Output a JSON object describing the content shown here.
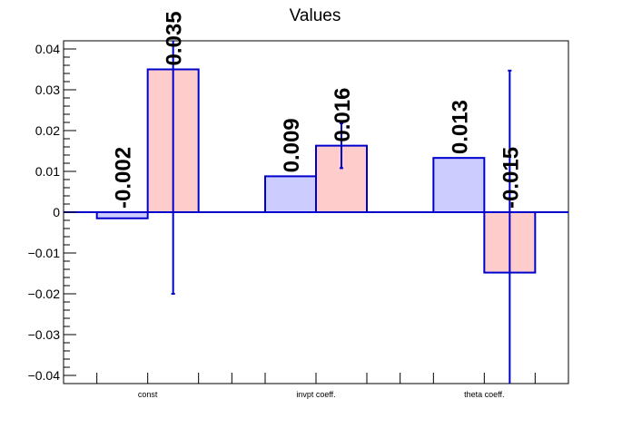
{
  "chart_data": {
    "type": "bar",
    "title": "Values",
    "xlabel": "",
    "ylabel": "",
    "ylim": [
      -0.042,
      0.042
    ],
    "yticks": [
      -0.04,
      -0.03,
      -0.02,
      -0.01,
      0,
      0.01,
      0.02,
      0.03,
      0.04
    ],
    "ytick_labels": [
      "−0.04",
      "−0.03",
      "−0.02",
      "−0.01",
      "0",
      "0.01",
      "0.02",
      "0.03",
      "0.04"
    ],
    "categories": [
      "const",
      "invpt coeff.",
      "theta coeff."
    ],
    "grid": false,
    "legend": "none",
    "series": [
      {
        "values": [
          -0.0015,
          0.0088,
          0.0133
        ],
        "labels": [
          "-0.002",
          "0.009",
          "0.013"
        ],
        "errors": [
          null,
          null,
          null
        ],
        "color": "#ccccff",
        "edge_color": "#0000cc"
      },
      {
        "values": [
          0.035,
          0.0163,
          -0.0148
        ],
        "labels": [
          "0.035",
          "0.016",
          "-0.015"
        ],
        "errors": [
          0.055,
          0.0055,
          0.0495
        ],
        "color": "#ffcccc",
        "edge_color": "#0000cc"
      }
    ],
    "errorbar_color": "#0000cc",
    "zero_line_color": "#0000cc"
  }
}
